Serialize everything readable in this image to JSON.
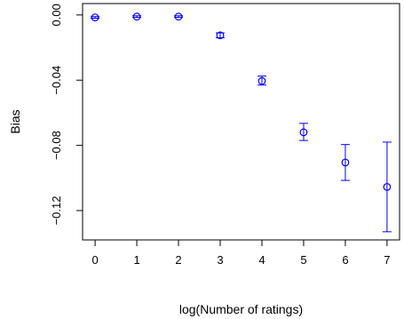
{
  "chart_data": {
    "type": "scatter",
    "title": "",
    "xlabel": "log(Number of ratings)",
    "ylabel": "Bias",
    "xlim": [
      -0.3,
      7.3
    ],
    "ylim": [
      -0.138,
      0.007
    ],
    "x_ticks": [
      0,
      1,
      2,
      3,
      4,
      5,
      6,
      7
    ],
    "x_tick_labels": [
      "0",
      "1",
      "2",
      "3",
      "4",
      "5",
      "6",
      "7"
    ],
    "y_ticks": [
      0.0,
      -0.04,
      -0.08,
      -0.12
    ],
    "y_tick_labels": [
      "0.00",
      "−0.04",
      "−0.08",
      "−0.12"
    ],
    "grid": false,
    "legend": "none",
    "marker": "open-circle",
    "color": "#0000ff",
    "series": [
      {
        "x": [
          0,
          1,
          2,
          3,
          4,
          5,
          6,
          7
        ],
        "y": [
          -0.0015,
          -0.001,
          -0.001,
          -0.0125,
          -0.0405,
          -0.072,
          -0.0905,
          -0.1055
        ],
        "error_low": [
          -0.002,
          -0.0015,
          -0.0015,
          -0.014,
          -0.043,
          -0.077,
          -0.1015,
          -0.133
        ],
        "error_high": [
          -0.001,
          -0.0005,
          -0.0005,
          -0.011,
          -0.0375,
          -0.0665,
          -0.0795,
          -0.078
        ]
      }
    ]
  }
}
